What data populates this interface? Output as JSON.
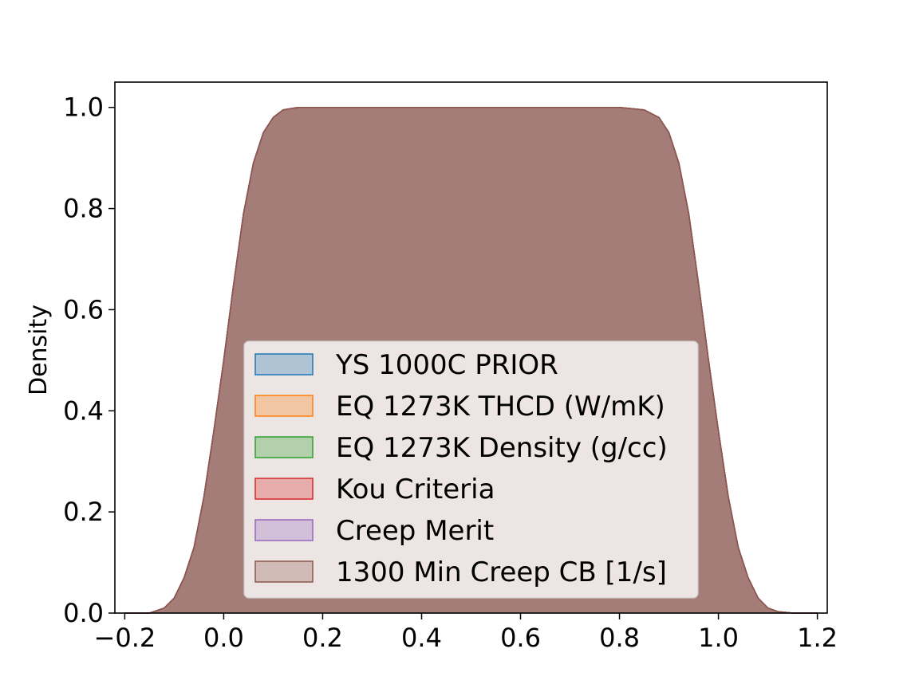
{
  "chart_data": {
    "type": "area",
    "title": "",
    "xlabel": "",
    "ylabel": "Density",
    "xlim": [
      -0.22,
      1.22
    ],
    "ylim": [
      0.0,
      1.05
    ],
    "xticks": [
      -0.2,
      0.0,
      0.2,
      0.4,
      0.6,
      0.8,
      1.0,
      1.2
    ],
    "xtick_labels": [
      "−0.2",
      "0.0",
      "0.2",
      "0.4",
      "0.6",
      "0.8",
      "1.0",
      "1.2"
    ],
    "yticks": [
      0.0,
      0.2,
      0.4,
      0.6,
      0.8,
      1.0
    ],
    "ytick_labels": [
      "0.0",
      "0.2",
      "0.4",
      "0.6",
      "0.8",
      "1.0"
    ],
    "grid": false,
    "legend_placement": "lower-center",
    "series": [
      {
        "name": "YS 1000C PRIOR",
        "color": "#1f77b4"
      },
      {
        "name": "EQ 1273K THCD (W/mK)",
        "color": "#ff7f0e"
      },
      {
        "name": "EQ 1273K Density (g/cc)",
        "color": "#2ca02c"
      },
      {
        "name": "Kou Criteria",
        "color": "#d62728"
      },
      {
        "name": "Creep Merit",
        "color": "#9467bd"
      },
      {
        "name": "1300 Min Creep CB [1/s]",
        "color": "#8c564b"
      }
    ],
    "density_curve": {
      "x": [
        -0.2,
        -0.15,
        -0.12,
        -0.1,
        -0.08,
        -0.06,
        -0.04,
        -0.02,
        0.0,
        0.02,
        0.04,
        0.06,
        0.08,
        0.1,
        0.12,
        0.15,
        0.2,
        0.3,
        0.5,
        0.7,
        0.8,
        0.85,
        0.88,
        0.9,
        0.92,
        0.94,
        0.96,
        0.98,
        1.0,
        1.02,
        1.04,
        1.06,
        1.08,
        1.1,
        1.12,
        1.15,
        1.2
      ],
      "y": [
        0.0,
        0.0,
        0.01,
        0.03,
        0.07,
        0.13,
        0.23,
        0.36,
        0.5,
        0.65,
        0.79,
        0.89,
        0.95,
        0.98,
        0.995,
        1.0,
        1.0,
        1.0,
        1.0,
        1.0,
        1.0,
        0.995,
        0.98,
        0.95,
        0.89,
        0.79,
        0.65,
        0.5,
        0.36,
        0.23,
        0.13,
        0.07,
        0.03,
        0.01,
        0.003,
        0.0,
        0.0
      ]
    }
  }
}
